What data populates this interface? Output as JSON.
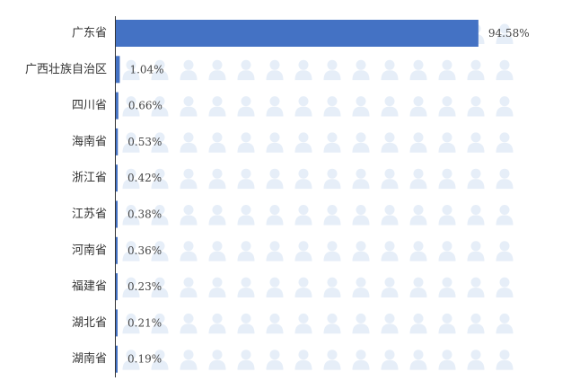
{
  "chart_data": {
    "type": "bar",
    "orientation": "horizontal",
    "title": "",
    "xlabel": "",
    "ylabel": "",
    "categories": [
      "广东省",
      "广西壮族自治区",
      "四川省",
      "海南省",
      "浙江省",
      "江苏省",
      "河南省",
      "福建省",
      "湖北省",
      "湖南省"
    ],
    "values": [
      94.58,
      1.04,
      0.66,
      0.53,
      0.42,
      0.38,
      0.36,
      0.23,
      0.21,
      0.19
    ],
    "value_labels": [
      "94.58%",
      "1.04%",
      "0.66%",
      "0.53%",
      "0.42%",
      "0.38%",
      "0.36%",
      "0.23%",
      "0.21%",
      "0.19%"
    ],
    "unit": "%",
    "xlim": [
      0,
      100
    ],
    "grid": false,
    "legend": "none",
    "background_icon": "person-icon",
    "colors": {
      "bar": "#4472c4",
      "icon": "#e6eef8",
      "axis": "#333333"
    }
  }
}
